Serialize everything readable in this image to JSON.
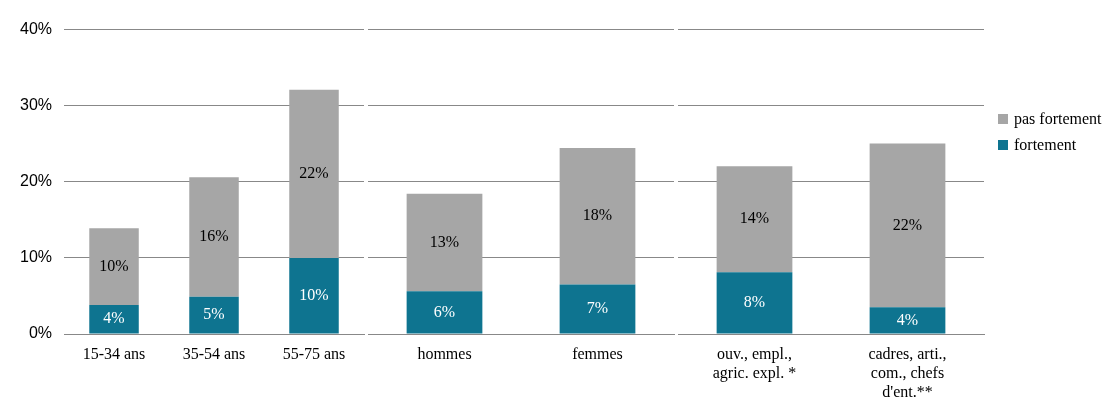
{
  "chart_data": [
    {
      "type": "bar",
      "stacked": true,
      "categories": [
        "15-34 ans",
        "35-54 ans",
        "55-75 ans"
      ],
      "series": [
        {
          "color": "#0e7490",
          "values": [
            3.8,
            4.9,
            10.0
          ],
          "value_labels": [
            "4%",
            "5%",
            "10%"
          ]
        },
        {
          "color": "#a6a6a6",
          "values": [
            10.1,
            15.7,
            22.1
          ],
          "value_labels": [
            "10%",
            "16%",
            "22%"
          ]
        }
      ],
      "ylim": [
        0,
        40
      ],
      "yticks": [
        {
          "value": 0,
          "label": "0%"
        },
        {
          "value": 10,
          "label": "10%"
        },
        {
          "value": 20,
          "label": "20%"
        },
        {
          "value": 30,
          "label": "30%"
        },
        {
          "value": 40,
          "label": "40%"
        }
      ],
      "grid": "y"
    },
    {
      "type": "bar",
      "stacked": true,
      "categories": [
        "hommes",
        "femmes"
      ],
      "series": [
        {
          "color": "#0e7490",
          "values": [
            5.6,
            6.5
          ],
          "value_labels": [
            "6%",
            "7%"
          ]
        },
        {
          "color": "#a6a6a6",
          "values": [
            12.8,
            17.9
          ],
          "value_labels": [
            "13%",
            "18%"
          ]
        }
      ],
      "ylim": [
        0,
        40
      ],
      "yticks": [
        {
          "value": 0,
          "label": null
        },
        {
          "value": 10,
          "label": null
        },
        {
          "value": 20,
          "label": null
        },
        {
          "value": 30,
          "label": null
        },
        {
          "value": 40,
          "label": null
        }
      ],
      "grid": "y",
      "tick_labels": "x"
    },
    {
      "type": "bar",
      "stacked": true,
      "categories": [
        "ouv., empl.,\nagric. expl. *",
        "cadres, arti.,\ncom., chefs\nd'ent.**"
      ],
      "series": [
        {
          "name": "fortement",
          "color": "#0e7490",
          "values": [
            8.1,
            3.5
          ],
          "value_labels": [
            "8%",
            "4%"
          ]
        },
        {
          "name": "pas fortement",
          "color": "#a6a6a6",
          "values": [
            13.9,
            21.5
          ],
          "value_labels": [
            "14%",
            "22%"
          ]
        }
      ],
      "ylim": [
        0,
        40
      ],
      "yticks": [
        {
          "value": 0,
          "label": null
        },
        {
          "value": 10,
          "label": null
        },
        {
          "value": 20,
          "label": null
        },
        {
          "value": 30,
          "label": null
        },
        {
          "value": 40,
          "label": null
        }
      ],
      "grid": "y",
      "tick_labels": "x",
      "legend": "right"
    }
  ]
}
